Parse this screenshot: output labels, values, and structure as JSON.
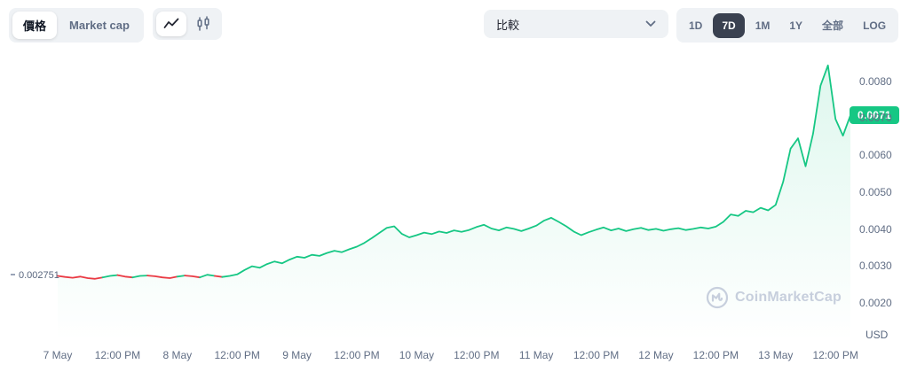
{
  "colors": {
    "up_green": "#16c784",
    "down_red": "#ea3943",
    "muted_text": "#616e85",
    "dark_text": "#0d1421",
    "group_bg": "#eff2f5",
    "active_range_bg": "#3a4150",
    "watermark": "#c7cfdd"
  },
  "toolbar": {
    "view_toggle": [
      {
        "label": "價格",
        "name": "price",
        "active": true
      },
      {
        "label": "Market cap",
        "name": "marketcap",
        "active": false
      }
    ],
    "chart_type": [
      {
        "name": "line",
        "active": true
      },
      {
        "name": "candles",
        "active": false
      }
    ],
    "compare_label": "比較",
    "ranges": [
      {
        "label": "1D",
        "name": "1d",
        "active": false
      },
      {
        "label": "7D",
        "name": "7d",
        "active": true
      },
      {
        "label": "1M",
        "name": "1m",
        "active": false
      },
      {
        "label": "1Y",
        "name": "1y",
        "active": false
      },
      {
        "label": "全部",
        "name": "all",
        "active": false
      },
      {
        "label": "LOG",
        "name": "log",
        "active": false
      }
    ]
  },
  "chart_data": {
    "type": "line",
    "title": "",
    "xlabel": "",
    "ylabel": "USD",
    "legend_position": "none",
    "grid": false,
    "open_price": 0.002751,
    "open_price_label": "0.002751",
    "current_price_label": "0.0071",
    "ylim": [
      0.001,
      0.0089
    ],
    "y_ticks": [
      0.008,
      0.007,
      0.006,
      0.005,
      0.004,
      0.003,
      0.002
    ],
    "x_ticks": [
      "7 May",
      "12:00 PM",
      "8 May",
      "12:00 PM",
      "9 May",
      "12:00 PM",
      "10 May",
      "12:00 PM",
      "11 May",
      "12:00 PM",
      "12 May",
      "12:00 PM",
      "13 May",
      "12:00 PM"
    ],
    "x_tick_interval_points": 8,
    "line_color_up": "#16c784",
    "line_color_down": "#ea3943",
    "values": [
      0.00276,
      0.00273,
      0.00271,
      0.00274,
      0.0027,
      0.00268,
      0.00272,
      0.00276,
      0.00278,
      0.00274,
      0.00272,
      0.00276,
      0.00277,
      0.00275,
      0.00272,
      0.0027,
      0.00274,
      0.00277,
      0.00275,
      0.00272,
      0.00279,
      0.00276,
      0.00273,
      0.00276,
      0.0028,
      0.00292,
      0.00302,
      0.00298,
      0.00308,
      0.00315,
      0.0031,
      0.0032,
      0.00328,
      0.00325,
      0.00333,
      0.0033,
      0.00338,
      0.00344,
      0.0034,
      0.00348,
      0.00355,
      0.00365,
      0.00378,
      0.00392,
      0.00406,
      0.0041,
      0.0039,
      0.0038,
      0.00386,
      0.00393,
      0.00389,
      0.00396,
      0.00392,
      0.00399,
      0.00395,
      0.004,
      0.00408,
      0.00414,
      0.00404,
      0.00399,
      0.00407,
      0.00403,
      0.00397,
      0.00404,
      0.00412,
      0.00425,
      0.00433,
      0.00422,
      0.0041,
      0.00396,
      0.00386,
      0.00394,
      0.00401,
      0.00407,
      0.00399,
      0.00404,
      0.00397,
      0.00402,
      0.00406,
      0.004,
      0.00403,
      0.00398,
      0.00402,
      0.00405,
      0.004,
      0.00403,
      0.00407,
      0.00404,
      0.00409,
      0.00422,
      0.00442,
      0.00438,
      0.00452,
      0.00448,
      0.0046,
      0.00453,
      0.00468,
      0.0053,
      0.0062,
      0.00648,
      0.00572,
      0.0066,
      0.0079,
      0.00845,
      0.007,
      0.00655,
      0.0071
    ]
  },
  "watermark_text": "CoinMarketCap"
}
